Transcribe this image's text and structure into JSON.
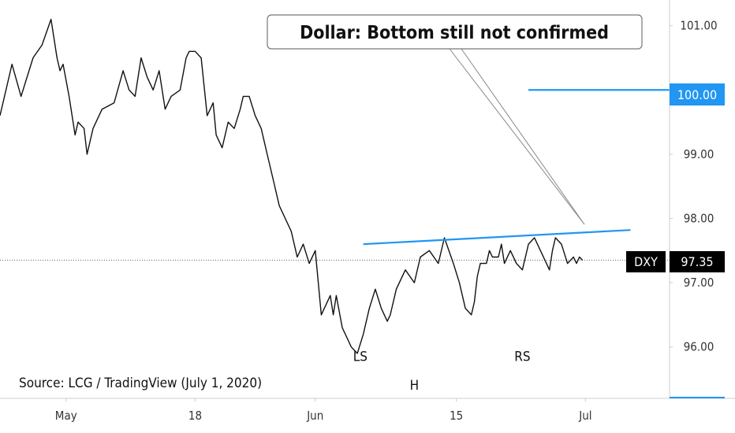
{
  "title": "Dollar: Bottom still not confirmed",
  "source": "Source: LCG / TradingView (July 1, 2020)",
  "chart_data": {
    "type": "line",
    "instrument": "DXY",
    "last_value": 97.35,
    "last_value_label": "97.35",
    "ylim": [
      95.2,
      101.4
    ],
    "y_ticks": [
      96.0,
      97.0,
      98.0,
      99.0,
      100.0,
      101.0
    ],
    "y_tick_labels": [
      "96.00",
      "97.00",
      "98.00",
      "99.00",
      "100.00",
      "101.00"
    ],
    "x_tick_labels": [
      "May",
      "18",
      "Jun",
      "15",
      "Jul"
    ],
    "x_ticks": [
      5,
      48,
      88,
      135,
      178
    ],
    "xlim": [
      -17,
      206
    ],
    "series": [
      {
        "x": [
          -17,
          -13,
          -10,
          -6,
          -3,
          0,
          2,
          3,
          4,
          6,
          8,
          9,
          11,
          12,
          14,
          17,
          21,
          24,
          26,
          28,
          30,
          32,
          34,
          36,
          38,
          40,
          43,
          45,
          46,
          48,
          50,
          52,
          54,
          55,
          57,
          59,
          61,
          63,
          64,
          66,
          68,
          70,
          72,
          74,
          76,
          78,
          80,
          82,
          84,
          86,
          88,
          90,
          92,
          93,
          94,
          95,
          97,
          99,
          100,
          102,
          104,
          106,
          108,
          110,
          112,
          113,
          115,
          118,
          121,
          123,
          126,
          129,
          131,
          134,
          136,
          138,
          140,
          141,
          142,
          143,
          145,
          146,
          147,
          149,
          150,
          151,
          153,
          155,
          157,
          159,
          161,
          163,
          165,
          166,
          167,
          168,
          170,
          172,
          174,
          175,
          176,
          177
        ],
        "values": [
          99.6,
          100.4,
          99.9,
          100.5,
          100.7,
          101.1,
          100.5,
          100.3,
          100.4,
          99.9,
          99.3,
          99.5,
          99.4,
          99.0,
          99.4,
          99.7,
          99.8,
          100.3,
          100.0,
          99.9,
          100.5,
          100.2,
          100.0,
          100.3,
          99.7,
          99.9,
          100.0,
          100.5,
          100.6,
          100.6,
          100.5,
          99.6,
          99.8,
          99.3,
          99.1,
          99.5,
          99.4,
          99.7,
          99.9,
          99.9,
          99.6,
          99.4,
          99.0,
          98.6,
          98.2,
          98.0,
          97.8,
          97.4,
          97.6,
          97.3,
          97.5,
          96.5,
          96.7,
          96.8,
          96.5,
          96.8,
          96.3,
          96.1,
          96.0,
          95.9,
          96.2,
          96.6,
          96.9,
          96.6,
          96.4,
          96.5,
          96.9,
          97.2,
          97.0,
          97.4,
          97.5,
          97.3,
          97.7,
          97.3,
          97.0,
          96.6,
          96.5,
          96.7,
          97.1,
          97.3,
          97.3,
          97.5,
          97.4,
          97.4,
          97.6,
          97.3,
          97.5,
          97.3,
          97.2,
          97.6,
          97.7,
          97.5,
          97.3,
          97.2,
          97.5,
          97.7,
          97.6,
          97.3,
          97.4,
          97.3,
          97.4,
          97.35
        ]
      }
    ],
    "neckline": {
      "x": [
        104,
        193
      ],
      "values": [
        97.6,
        97.82
      ]
    },
    "level_line": {
      "x": [
        159,
        206
      ],
      "value": 100.0
    },
    "level_label": "100.00",
    "annotations": [
      {
        "text": "LS",
        "x": 103,
        "value": 96.2
      },
      {
        "text": "H",
        "x": 121,
        "value": 95.75
      },
      {
        "text": "RS",
        "x": 157,
        "value": 96.2
      }
    ],
    "colors": {
      "price": "#111111",
      "neckline": "#2196f3",
      "level": "#2196f3",
      "badge_level": "#2196f3",
      "badge_last": "#000000"
    }
  }
}
